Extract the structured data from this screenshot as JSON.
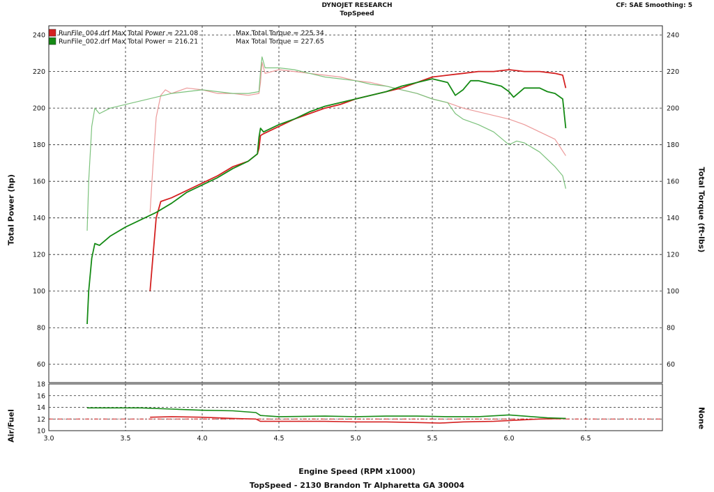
{
  "header": {
    "vendor": "DYNOJET RESEARCH",
    "shop": "TopSpeed",
    "correction": "CF: SAE  Smoothing: 5"
  },
  "axes": {
    "x_label": "Engine Speed (RPM x1000)",
    "y_left_label": "Total Power (hp)",
    "y_right_label": "Total Torque (ft-lbs)",
    "af_left_label": "Air/Fuel",
    "af_right_label": "None"
  },
  "footer": "TopSpeed - 2130 Brandon Tr Alpharetta GA 30004",
  "colors": {
    "run1_power": "#d42020",
    "run1_torque": "#ec9a9a",
    "run2_power": "#148a14",
    "run2_torque": "#7cc27c",
    "target_line": "#d42020",
    "grid": "#222222"
  },
  "legend": [
    {
      "text": "RunFile_004.drf Max Total Power = 221.08",
      "torque_text": "Max Total Torque = 225.34",
      "color": "#d42020"
    },
    {
      "text": "RunFile_002.drf Max Total Power = 216.21",
      "torque_text": "Max Total Torque = 227.65",
      "color": "#148a14"
    }
  ],
  "chart_data": [
    {
      "type": "line",
      "title": "",
      "xlabel": "Engine Speed (RPM x1000)",
      "ylabel": "Total Power (hp)",
      "y2label": "Total Torque (ft-lbs)",
      "xlim": [
        3.0,
        7.0
      ],
      "ylim": [
        50,
        245
      ],
      "x_ticks": [
        3.0,
        3.5,
        4.0,
        4.5,
        5.0,
        5.5,
        6.0,
        6.5
      ],
      "y_ticks": [
        60,
        80,
        100,
        120,
        140,
        160,
        180,
        200,
        220,
        240
      ],
      "grid": true,
      "legend_position": "top-left",
      "series": [
        {
          "name": "RunFile_004.drf",
          "measure": "power",
          "color_key": "run1_power",
          "points": [
            [
              3.66,
              100
            ],
            [
              3.68,
              120
            ],
            [
              3.7,
              140
            ],
            [
              3.73,
              149
            ],
            [
              3.8,
              151
            ],
            [
              3.9,
              155
            ],
            [
              4.0,
              159
            ],
            [
              4.1,
              163
            ],
            [
              4.2,
              168
            ],
            [
              4.3,
              171
            ],
            [
              4.36,
              175
            ],
            [
              4.37,
              178
            ],
            [
              4.38,
              185
            ],
            [
              4.4,
              186
            ],
            [
              4.5,
              190
            ],
            [
              4.6,
              194
            ],
            [
              4.7,
              197
            ],
            [
              4.8,
              200
            ],
            [
              4.9,
              202
            ],
            [
              5.0,
              205
            ],
            [
              5.1,
              207
            ],
            [
              5.2,
              209
            ],
            [
              5.3,
              211
            ],
            [
              5.4,
              214
            ],
            [
              5.5,
              217
            ],
            [
              5.6,
              218
            ],
            [
              5.7,
              219
            ],
            [
              5.8,
              220
            ],
            [
              5.9,
              220
            ],
            [
              6.0,
              221
            ],
            [
              6.1,
              220
            ],
            [
              6.2,
              220
            ],
            [
              6.3,
              219
            ],
            [
              6.35,
              218
            ],
            [
              6.37,
              211
            ]
          ]
        },
        {
          "name": "RunFile_004.drf",
          "measure": "torque",
          "color_key": "run1_torque",
          "points": [
            [
              3.66,
              143
            ],
            [
              3.68,
              170
            ],
            [
              3.7,
              195
            ],
            [
              3.73,
              207
            ],
            [
              3.76,
              210
            ],
            [
              3.8,
              208
            ],
            [
              3.9,
              211
            ],
            [
              4.0,
              210
            ],
            [
              4.1,
              208
            ],
            [
              4.2,
              208
            ],
            [
              4.3,
              207
            ],
            [
              4.37,
              208
            ],
            [
              4.38,
              214
            ],
            [
              4.39,
              225
            ],
            [
              4.41,
              219
            ],
            [
              4.5,
              221
            ],
            [
              4.6,
              220
            ],
            [
              4.7,
              219
            ],
            [
              4.8,
              218
            ],
            [
              4.9,
              217
            ],
            [
              5.0,
              215
            ],
            [
              5.1,
              214
            ],
            [
              5.2,
              212
            ],
            [
              5.3,
              210
            ],
            [
              5.4,
              208
            ],
            [
              5.5,
              205
            ],
            [
              5.6,
              203
            ],
            [
              5.7,
              200
            ],
            [
              5.8,
              198
            ],
            [
              5.9,
              196
            ],
            [
              6.0,
              194
            ],
            [
              6.1,
              191
            ],
            [
              6.2,
              187
            ],
            [
              6.3,
              183
            ],
            [
              6.37,
              174
            ]
          ]
        },
        {
          "name": "RunFile_002.drf",
          "measure": "power",
          "color_key": "run2_power",
          "points": [
            [
              3.25,
              82
            ],
            [
              3.26,
              100
            ],
            [
              3.28,
              118
            ],
            [
              3.3,
              126
            ],
            [
              3.33,
              125
            ],
            [
              3.4,
              130
            ],
            [
              3.5,
              135
            ],
            [
              3.6,
              139
            ],
            [
              3.7,
              143
            ],
            [
              3.8,
              148
            ],
            [
              3.9,
              154
            ],
            [
              4.0,
              158
            ],
            [
              4.1,
              162
            ],
            [
              4.2,
              167
            ],
            [
              4.3,
              171
            ],
            [
              4.36,
              175
            ],
            [
              4.37,
              184
            ],
            [
              4.38,
              189
            ],
            [
              4.4,
              187
            ],
            [
              4.5,
              191
            ],
            [
              4.6,
              194
            ],
            [
              4.7,
              198
            ],
            [
              4.8,
              201
            ],
            [
              4.9,
              203
            ],
            [
              5.0,
              205
            ],
            [
              5.1,
              207
            ],
            [
              5.2,
              209
            ],
            [
              5.3,
              212
            ],
            [
              5.4,
              214
            ],
            [
              5.5,
              216
            ],
            [
              5.6,
              214
            ],
            [
              5.65,
              207
            ],
            [
              5.7,
              210
            ],
            [
              5.75,
              215
            ],
            [
              5.8,
              215
            ],
            [
              5.9,
              213
            ],
            [
              5.95,
              212
            ],
            [
              6.0,
              209
            ],
            [
              6.03,
              206
            ],
            [
              6.1,
              211
            ],
            [
              6.2,
              211
            ],
            [
              6.25,
              209
            ],
            [
              6.3,
              208
            ],
            [
              6.35,
              205
            ],
            [
              6.37,
              189
            ]
          ]
        },
        {
          "name": "RunFile_002.drf",
          "measure": "torque",
          "color_key": "run2_torque",
          "points": [
            [
              3.25,
              133
            ],
            [
              3.26,
              160
            ],
            [
              3.28,
              190
            ],
            [
              3.3,
              200
            ],
            [
              3.33,
              197
            ],
            [
              3.4,
              200
            ],
            [
              3.5,
              202
            ],
            [
              3.6,
              204
            ],
            [
              3.7,
              206
            ],
            [
              3.8,
              208
            ],
            [
              3.9,
              209
            ],
            [
              4.0,
              210
            ],
            [
              4.1,
              209
            ],
            [
              4.2,
              208
            ],
            [
              4.3,
              208
            ],
            [
              4.37,
              209
            ],
            [
              4.38,
              220
            ],
            [
              4.39,
              228
            ],
            [
              4.41,
              222
            ],
            [
              4.5,
              222
            ],
            [
              4.6,
              221
            ],
            [
              4.7,
              219
            ],
            [
              4.8,
              217
            ],
            [
              4.9,
              216
            ],
            [
              5.0,
              215
            ],
            [
              5.1,
              213
            ],
            [
              5.2,
              212
            ],
            [
              5.3,
              210
            ],
            [
              5.4,
              208
            ],
            [
              5.5,
              205
            ],
            [
              5.6,
              203
            ],
            [
              5.65,
              197
            ],
            [
              5.7,
              194
            ],
            [
              5.8,
              191
            ],
            [
              5.9,
              187
            ],
            [
              6.0,
              180
            ],
            [
              6.05,
              182
            ],
            [
              6.1,
              181
            ],
            [
              6.2,
              176
            ],
            [
              6.3,
              168
            ],
            [
              6.35,
              163
            ],
            [
              6.37,
              156
            ]
          ]
        }
      ]
    },
    {
      "type": "line",
      "title": "",
      "xlabel": "Engine Speed (RPM x1000)",
      "ylabel": "Air/Fuel",
      "y2label": "None",
      "xlim": [
        3.0,
        7.0
      ],
      "ylim": [
        10,
        18
      ],
      "x_ticks": [
        3.0,
        3.5,
        4.0,
        4.5,
        5.0,
        5.5,
        6.0,
        6.5
      ],
      "y_ticks": [
        10,
        12,
        14,
        16,
        18
      ],
      "grid": true,
      "reference_line": 12.0,
      "series": [
        {
          "name": "RunFile_004.drf",
          "color_key": "run1_power",
          "points": [
            [
              3.66,
              12.3
            ],
            [
              3.8,
              12.4
            ],
            [
              4.0,
              12.3
            ],
            [
              4.2,
              12.1
            ],
            [
              4.35,
              12.0
            ],
            [
              4.38,
              11.6
            ],
            [
              4.5,
              11.6
            ],
            [
              4.8,
              11.6
            ],
            [
              5.0,
              11.5
            ],
            [
              5.2,
              11.5
            ],
            [
              5.4,
              11.4
            ],
            [
              5.55,
              11.3
            ],
            [
              5.7,
              11.5
            ],
            [
              5.9,
              11.6
            ],
            [
              6.05,
              11.8
            ],
            [
              6.2,
              12.0
            ],
            [
              6.37,
              12.1
            ]
          ]
        },
        {
          "name": "RunFile_002.drf",
          "color_key": "run2_power",
          "points": [
            [
              3.25,
              13.9
            ],
            [
              3.4,
              13.9
            ],
            [
              3.6,
              13.9
            ],
            [
              3.8,
              13.7
            ],
            [
              4.0,
              13.5
            ],
            [
              4.2,
              13.4
            ],
            [
              4.35,
              13.1
            ],
            [
              4.38,
              12.6
            ],
            [
              4.5,
              12.4
            ],
            [
              4.8,
              12.5
            ],
            [
              5.0,
              12.4
            ],
            [
              5.2,
              12.5
            ],
            [
              5.4,
              12.5
            ],
            [
              5.6,
              12.4
            ],
            [
              5.8,
              12.4
            ],
            [
              6.0,
              12.7
            ],
            [
              6.1,
              12.5
            ],
            [
              6.25,
              12.2
            ],
            [
              6.37,
              12.1
            ]
          ]
        }
      ]
    }
  ]
}
